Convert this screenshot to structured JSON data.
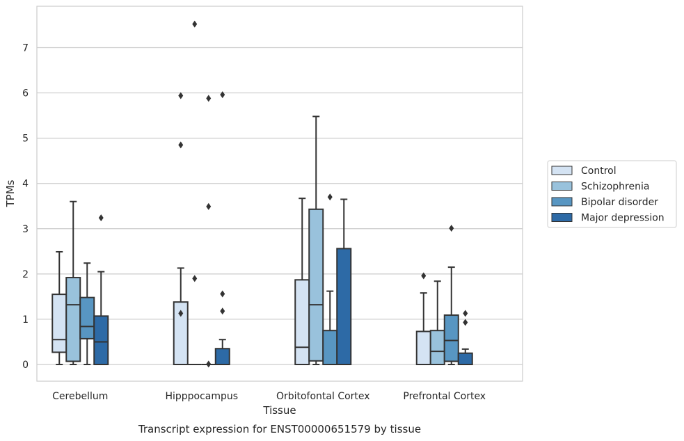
{
  "chart_data": {
    "type": "box",
    "xlabel": "Tissue",
    "ylabel": "TPMs",
    "caption": "Transcript expression for ENST00000651579 by tissue",
    "categories": [
      "Cerebellum",
      "Hipppocampus",
      "Orbitofontal Cortex",
      "Prefrontal Cortex"
    ],
    "ylim": [
      -0.35,
      7.9
    ],
    "yticks": [
      0,
      1,
      2,
      3,
      4,
      5,
      6,
      7
    ],
    "grid": "horizontal",
    "legend_position": "right",
    "series": [
      {
        "name": "Control",
        "color": "#d4e3f3",
        "boxes": [
          {
            "min": 0,
            "q1": 0.27,
            "median": 0.55,
            "q3": 1.55,
            "max": 2.49,
            "outliers": []
          },
          {
            "min": 0,
            "q1": 0,
            "median": 0,
            "q3": 1.38,
            "max": 2.13,
            "outliers": [
              4.85,
              5.94,
              1.13
            ]
          },
          {
            "min": 0,
            "q1": 0,
            "median": 0.38,
            "q3": 1.87,
            "max": 3.67,
            "outliers": []
          },
          {
            "min": 0,
            "q1": 0,
            "median": 0,
            "q3": 0.73,
            "max": 1.58,
            "outliers": [
              1.96
            ]
          }
        ]
      },
      {
        "name": "Schizophrenia",
        "color": "#99c2dc",
        "boxes": [
          {
            "min": 0,
            "q1": 0.07,
            "median": 1.32,
            "q3": 1.92,
            "max": 3.6,
            "outliers": []
          },
          {
            "min": 0,
            "q1": 0,
            "median": 0,
            "q3": 0,
            "max": 0,
            "outliers": [
              7.52,
              1.9
            ]
          },
          {
            "min": 0,
            "q1": 0.08,
            "median": 1.32,
            "q3": 3.43,
            "max": 5.48,
            "outliers": []
          },
          {
            "min": 0,
            "q1": 0,
            "median": 0.29,
            "q3": 0.75,
            "max": 1.84,
            "outliers": []
          }
        ]
      },
      {
        "name": "Bipolar disorder",
        "color": "#5896c2",
        "boxes": [
          {
            "min": 0,
            "q1": 0.57,
            "median": 0.84,
            "q3": 1.48,
            "max": 2.24,
            "outliers": []
          },
          {
            "min": 0,
            "q1": 0,
            "median": 0,
            "q3": 0,
            "max": 0,
            "outliers": [
              5.88,
              3.49,
              0.01
            ]
          },
          {
            "min": 0,
            "q1": 0,
            "median": 0,
            "q3": 0.75,
            "max": 1.62,
            "outliers": [
              3.7
            ]
          },
          {
            "min": 0,
            "q1": 0.07,
            "median": 0.53,
            "q3": 1.09,
            "max": 2.15,
            "outliers": [
              3.01
            ]
          }
        ]
      },
      {
        "name": "Major depression",
        "color": "#2d6aa6",
        "boxes": [
          {
            "min": 0,
            "q1": 0,
            "median": 0.5,
            "q3": 1.07,
            "max": 2.05,
            "outliers": [
              3.24
            ]
          },
          {
            "min": 0,
            "q1": 0,
            "median": 0,
            "q3": 0.35,
            "max": 0.55,
            "outliers": [
              5.96,
              1.56,
              1.18
            ]
          },
          {
            "min": 0,
            "q1": 0,
            "median": 0,
            "q3": 2.56,
            "max": 3.65,
            "outliers": []
          },
          {
            "min": 0,
            "q1": 0,
            "median": 0,
            "q3": 0.25,
            "max": 0.34,
            "outliers": [
              1.13,
              0.93
            ]
          }
        ]
      }
    ]
  }
}
